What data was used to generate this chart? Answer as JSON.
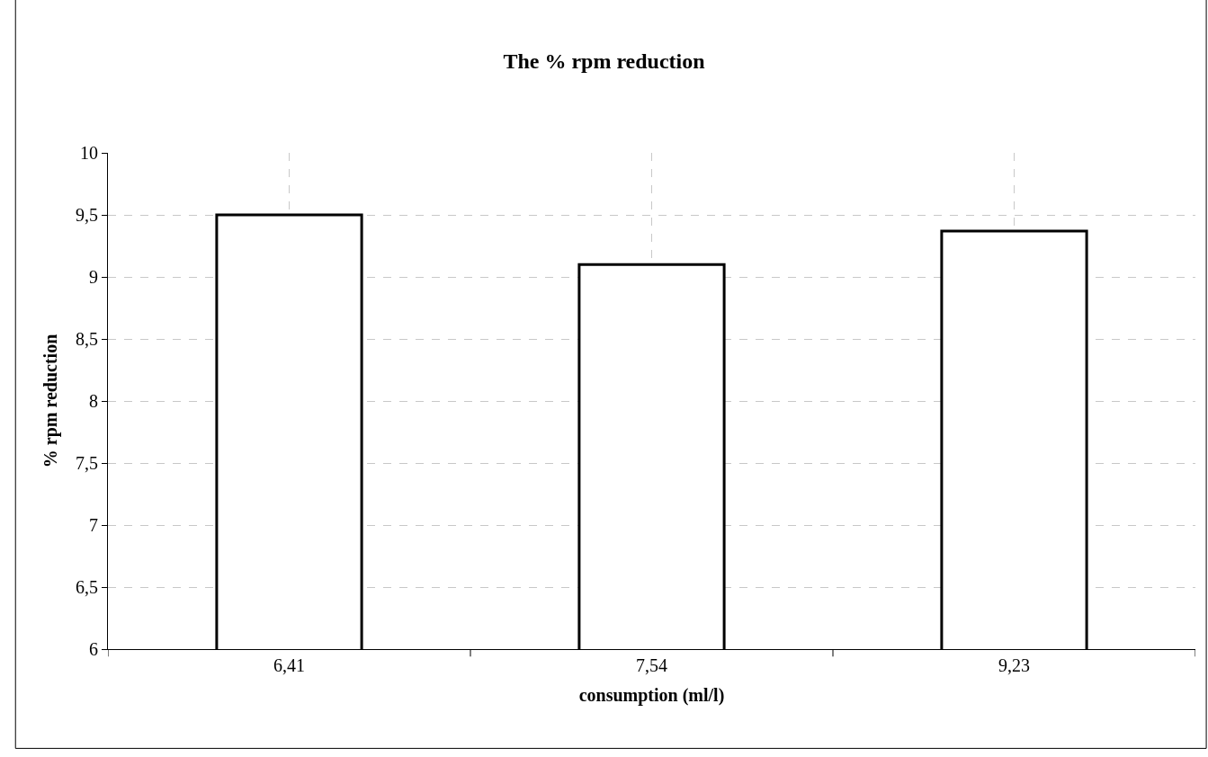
{
  "chart_data": {
    "type": "bar",
    "title": "The % rpm reduction",
    "xlabel": "consumption (ml/l)",
    "ylabel": "% rpm reduction",
    "categories": [
      "6,41",
      "7,54",
      "9,23"
    ],
    "values": [
      9.5,
      9.1,
      9.37
    ],
    "color": "#ffffff",
    "ylim": [
      6,
      10
    ],
    "yticks": [
      6,
      {
        "value": 6.5,
        "label": "6,5"
      },
      7,
      {
        "value": 7.5,
        "label": "7,5"
      },
      8,
      {
        "value": 8.5,
        "label": "8,5"
      },
      9,
      {
        "value": 9.5,
        "label": "9,5"
      },
      10
    ],
    "grid": true
  }
}
